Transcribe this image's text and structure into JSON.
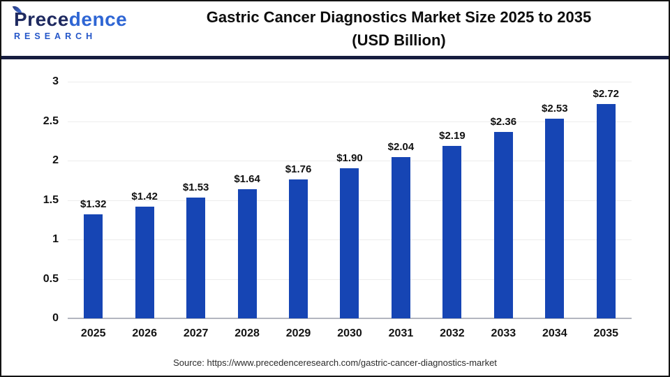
{
  "header": {
    "logo": {
      "segments": [
        "Prece",
        "dence"
      ],
      "subtitle": "RESEARCH"
    },
    "title_line1": "Gastric Cancer Diagnostics Market Size 2025 to 2035",
    "title_line2": "(USD Billion)"
  },
  "chart_data": {
    "type": "bar",
    "title": "Gastric Cancer Diagnostics Market Size 2025 to 2035 (USD Billion)",
    "categories": [
      "2025",
      "2026",
      "2027",
      "2028",
      "2029",
      "2030",
      "2031",
      "2032",
      "2033",
      "2034",
      "2035"
    ],
    "values": [
      1.32,
      1.42,
      1.53,
      1.64,
      1.76,
      1.9,
      2.04,
      2.19,
      2.36,
      2.53,
      2.72
    ],
    "value_labels": [
      "$1.32",
      "$1.42",
      "$1.53",
      "$1.64",
      "$1.76",
      "$1.90",
      "$2.04",
      "$2.19",
      "$2.36",
      "$2.53",
      "$2.72"
    ],
    "xlabel": "",
    "ylabel": "",
    "ylim": [
      0,
      3
    ],
    "yticks": [
      0,
      0.5,
      1,
      1.5,
      2,
      2.5,
      3
    ],
    "ytick_labels": [
      "0",
      "0.5",
      "1",
      "1.5",
      "2",
      "2.5",
      "3"
    ],
    "grid": true,
    "legend": false,
    "bar_color": "#1645b4"
  },
  "footer": {
    "source": "Source: https://www.precedenceresearch.com/gastric-cancer-diagnostics-market"
  },
  "colors": {
    "bar": "#1645b4",
    "header_divider": "#161d3f",
    "outer_border": "#131313",
    "gridline": "#ececec",
    "axis_line": "#b3b6bf",
    "logo_dark": "#1f2a60",
    "logo_light": "#2f66d4",
    "logo_sub": "#2456c8"
  }
}
